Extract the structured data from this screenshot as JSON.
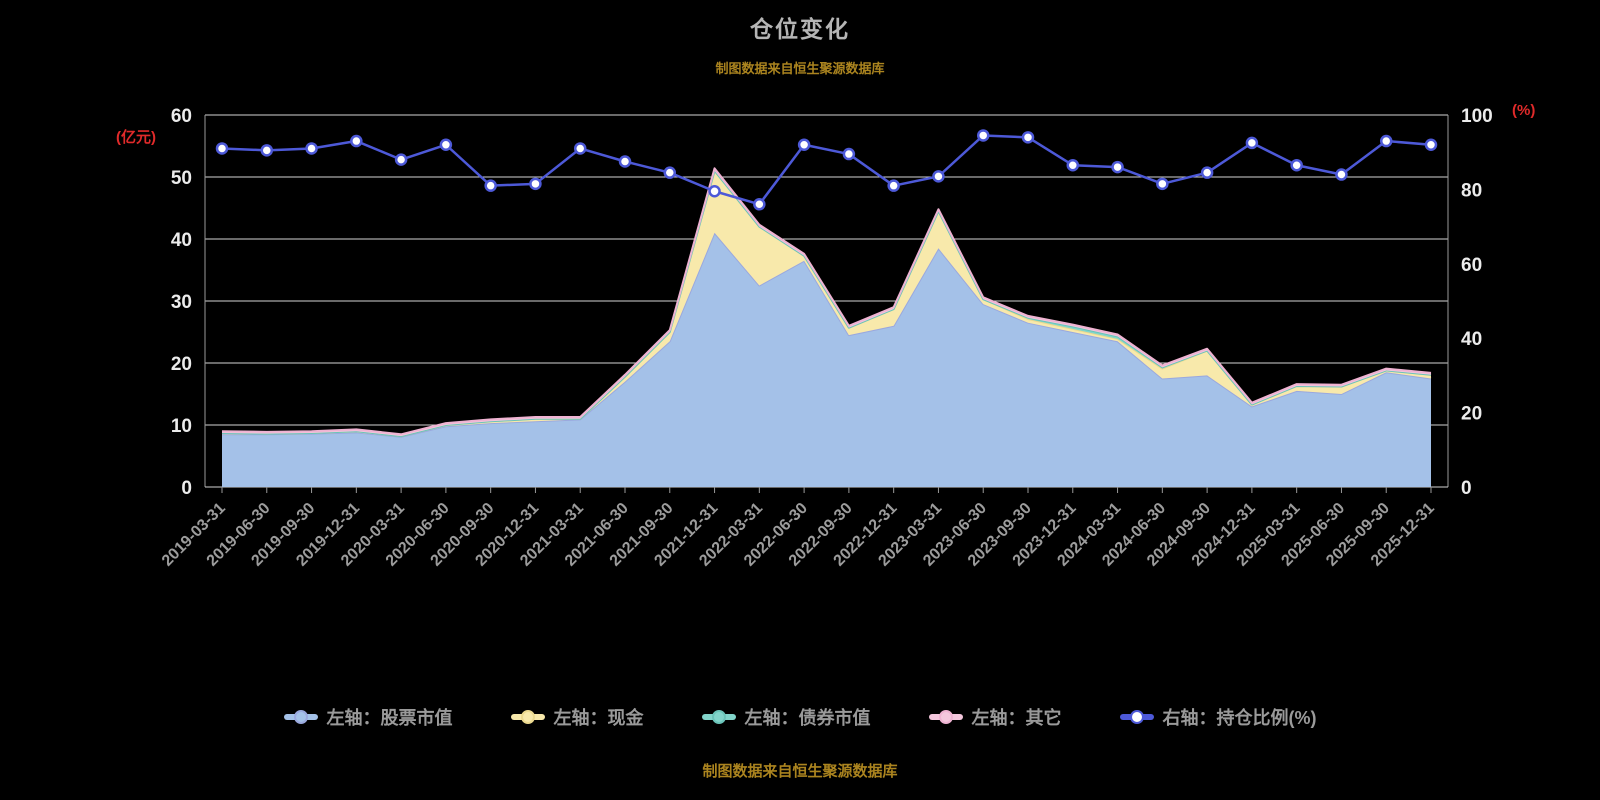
{
  "title": "仓位变化",
  "notes": {
    "top": "制图数据来自恒生聚源数据库",
    "bottom": "制图数据来自恒生聚源数据库"
  },
  "axes": {
    "left_unit": "(亿元)",
    "right_unit": "(%)",
    "left_range": [
      0,
      60
    ],
    "right_range": [
      0,
      100
    ],
    "left_ticks": [
      0,
      10,
      20,
      30,
      40,
      50,
      60
    ],
    "right_ticks": [
      0,
      20,
      40,
      60,
      80,
      100
    ]
  },
  "colors": {
    "background": "#000000",
    "title": "#b5b5b5",
    "grid_line": "#d4d4d4",
    "axis_line": "#9a9a9a",
    "axis_tick_label": "#ececec",
    "x_tick_label": "#9c9c9c",
    "unit_label": "#e02a2a",
    "note": "#ab841f",
    "legend_text": "#9a9a9a"
  },
  "chart_data": {
    "type": "area",
    "title": "仓位变化",
    "grid": true,
    "legend_position": "bottom",
    "categories": [
      "2019-03-31",
      "2019-06-30",
      "2019-09-30",
      "2019-12-31",
      "2020-03-31",
      "2020-06-30",
      "2020-09-30",
      "2020-12-31",
      "2021-03-31",
      "2021-06-30",
      "2021-09-30",
      "2021-12-31",
      "2022-03-31",
      "2022-06-30",
      "2022-09-30",
      "2022-12-31",
      "2023-03-31",
      "2023-06-30",
      "2023-09-30",
      "2023-12-31",
      "2024-03-31",
      "2024-06-30",
      "2024-09-30",
      "2024-12-31",
      "2025-03-31",
      "2025-06-30",
      "2025-09-30",
      "2025-12-31"
    ],
    "series": [
      {
        "name": "左轴：股票市值",
        "kind": "stacked-area",
        "axis": "left",
        "color": "#a4c1e8",
        "edge": "#9aa8de",
        "values": [
          8.5,
          8.5,
          8.6,
          8.8,
          8.1,
          9.8,
          10.3,
          10.6,
          10.9,
          17.0,
          23.5,
          41.0,
          32.5,
          36.5,
          24.5,
          26.0,
          38.5,
          29.5,
          26.5,
          25.0,
          23.5,
          17.5,
          18.0,
          13.0,
          15.5,
          15.0,
          18.5,
          17.5
        ]
      },
      {
        "name": "左轴：现金",
        "kind": "stacked-area",
        "axis": "left",
        "color": "#f8e9ab",
        "edge": "#ecd98f",
        "values": [
          0.2,
          0.1,
          0.1,
          0.2,
          0.1,
          0.2,
          0.3,
          0.4,
          0.1,
          0.8,
          1.5,
          10.0,
          9.5,
          0.8,
          1.2,
          2.7,
          6.0,
          0.8,
          0.6,
          0.5,
          0.4,
          1.6,
          4.0,
          0.3,
          0.8,
          1.2,
          0.3,
          0.6
        ]
      },
      {
        "name": "左轴：债券市值",
        "kind": "stacked-area",
        "axis": "left",
        "color": "#82d5cb",
        "edge": "#6ac4b9",
        "values": [
          0,
          0,
          0,
          0,
          0,
          0,
          0,
          0,
          0,
          0,
          0,
          0,
          0,
          0,
          0,
          0,
          0,
          0,
          0.2,
          0.4,
          0.4,
          0.2,
          0,
          0,
          0,
          0,
          0,
          0
        ]
      },
      {
        "name": "左轴：其它",
        "kind": "stacked-area",
        "axis": "left",
        "color": "#f4c7dd",
        "edge": "#efb3d2",
        "values": [
          0.3,
          0.3,
          0.3,
          0.3,
          0.3,
          0.3,
          0.3,
          0.3,
          0.3,
          0.3,
          0.3,
          0.4,
          0.3,
          0.3,
          0.3,
          0.3,
          0.3,
          0.3,
          0.3,
          0.3,
          0.3,
          0.3,
          0.3,
          0.3,
          0.3,
          0.3,
          0.3,
          0.3
        ]
      },
      {
        "name": "右轴：持仓比例(%)",
        "kind": "line",
        "axis": "right",
        "color": "#4d59d8",
        "marker_fill": "#ffffff",
        "values": [
          91,
          90.5,
          91,
          93,
          88,
          92,
          81,
          81.5,
          91,
          87.5,
          84.5,
          79.5,
          76,
          92,
          89.5,
          81,
          83.5,
          94.5,
          94,
          86.5,
          86,
          81.5,
          84.5,
          92.5,
          86.5,
          84,
          93,
          92
        ]
      }
    ]
  }
}
